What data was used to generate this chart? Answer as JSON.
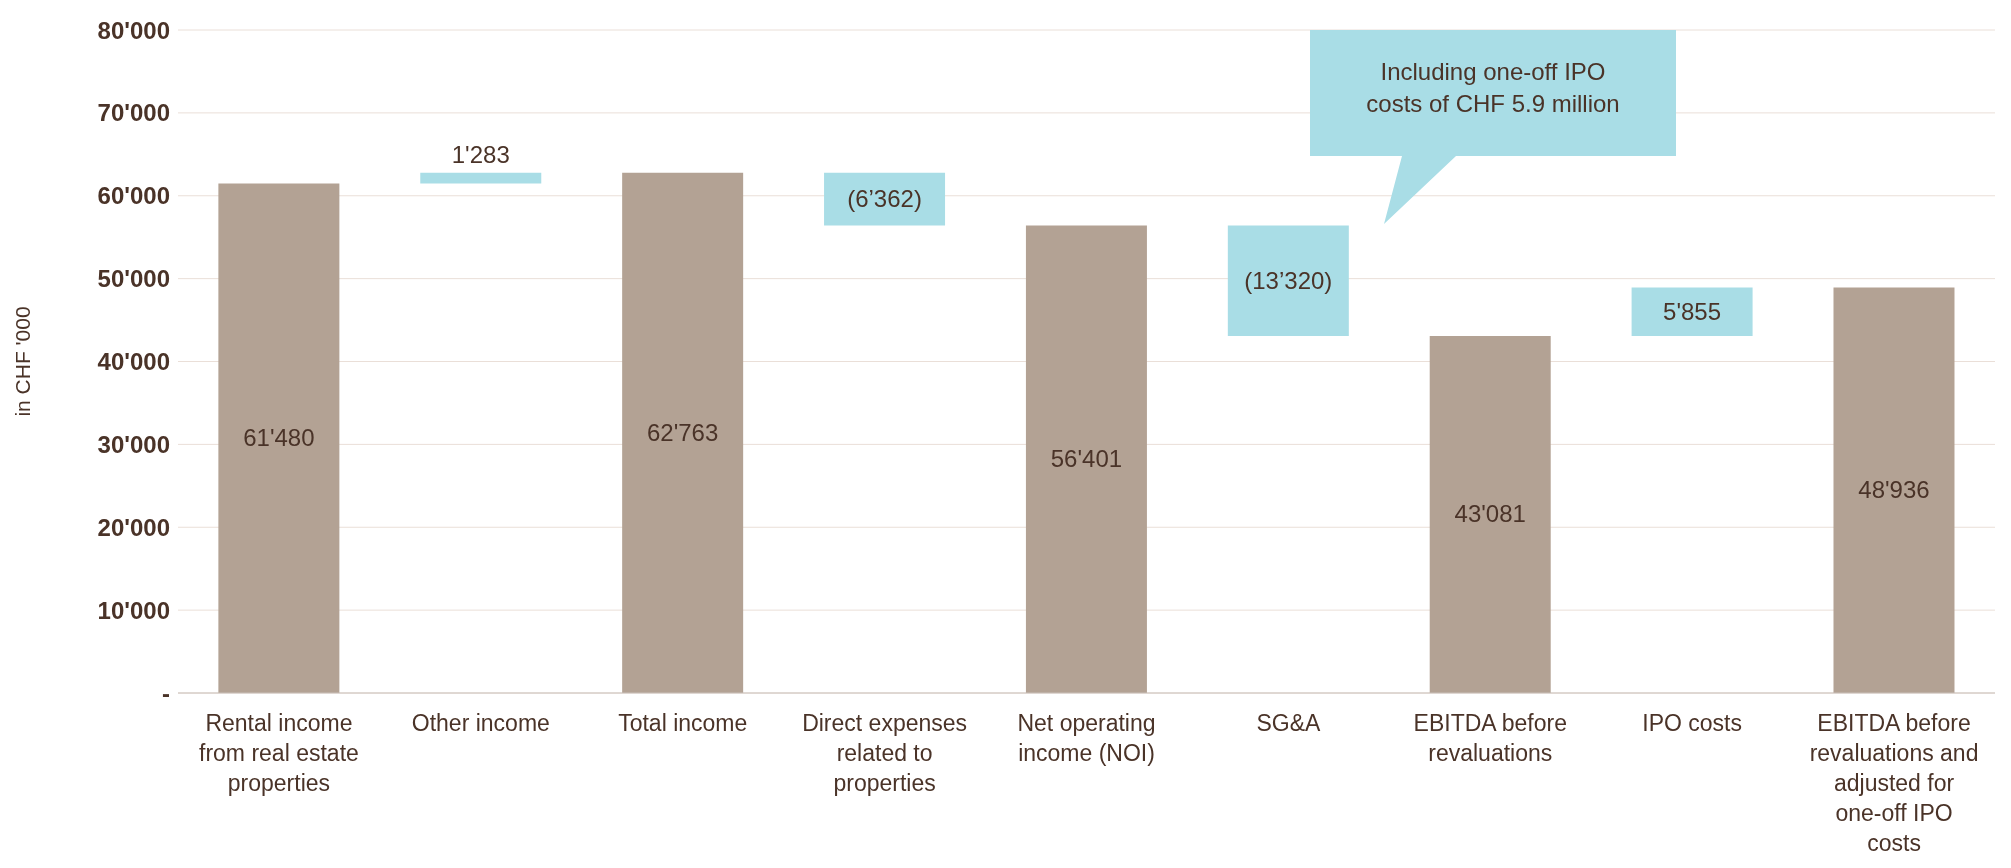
{
  "chart_data": {
    "type": "bar",
    "ylabel": "in CHF '000",
    "categories": [
      "Rental income from real estate properties",
      "Other income",
      "Total income",
      "Direct expenses related to properties",
      "Net operating income (NOI)",
      "SG&A",
      "EBITDA before revaluations",
      "IPO costs",
      "EBITDA before revaluations and adjusted for one-off IPO costs"
    ],
    "values": [
      61480,
      1283,
      62763,
      -6362,
      56401,
      -13320,
      43081,
      5855,
      48936
    ],
    "base": [
      0,
      61480,
      0,
      62763,
      0,
      56401,
      0,
      43081,
      0
    ],
    "colors": [
      "#b3a294",
      "#a9dde6",
      "#b3a294",
      "#a9dde6",
      "#b3a294",
      "#a9dde6",
      "#b3a294",
      "#a9dde6",
      "#b3a294"
    ],
    "value_labels": [
      "61'480",
      "1'283",
      "62'763",
      "(6’362)",
      "56'401",
      "(13’320)",
      "43'081",
      "5'855",
      "48'936"
    ],
    "ylim": [
      0,
      80000
    ],
    "yticks": [
      {
        "value": 0,
        "label": "-"
      },
      {
        "value": 10000,
        "label": "10'000"
      },
      {
        "value": 20000,
        "label": "20'000"
      },
      {
        "value": 30000,
        "label": "30'000"
      },
      {
        "value": 40000,
        "label": "40'000"
      },
      {
        "value": 50000,
        "label": "50'000"
      },
      {
        "value": 60000,
        "label": "60'000"
      },
      {
        "value": 70000,
        "label": "70'000"
      },
      {
        "value": 80000,
        "label": "80'000"
      }
    ],
    "grid": "y",
    "legend": false,
    "annotations": [
      "Including one-off IPO costs of CHF 5.9 million"
    ]
  }
}
